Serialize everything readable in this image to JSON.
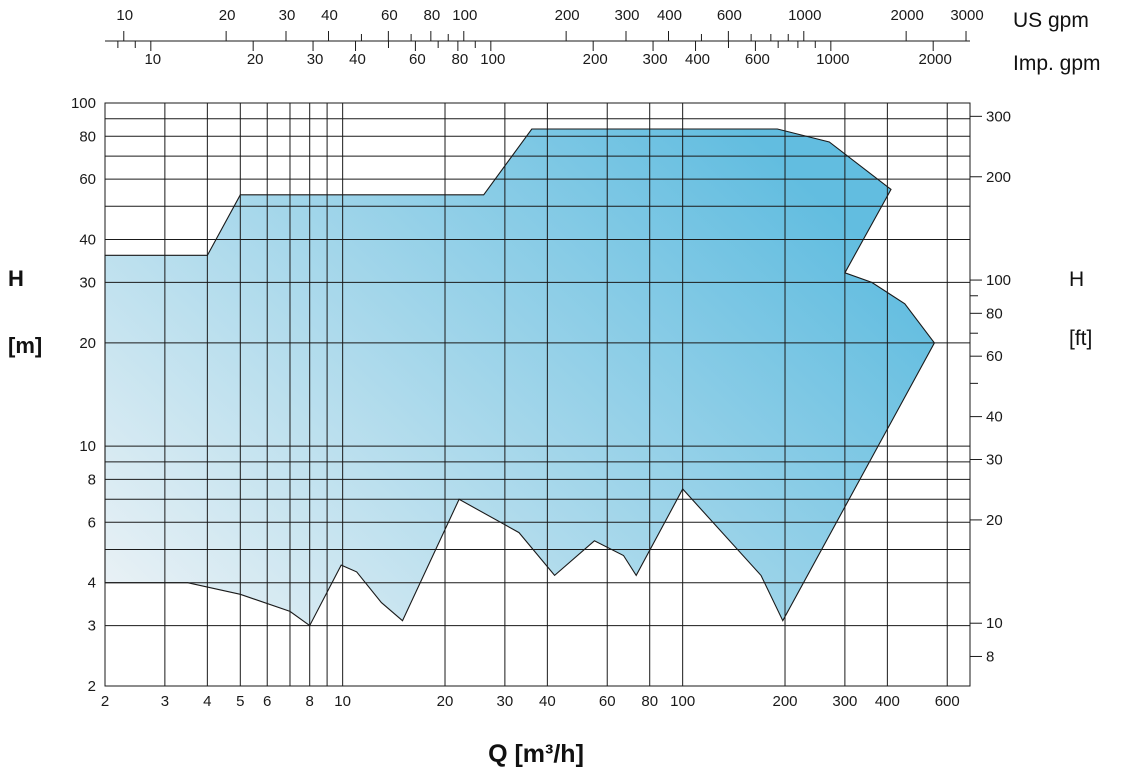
{
  "chart_data": {
    "type": "area",
    "title": "",
    "xlabel": "Q [m³/h]",
    "ylabel_left": [
      "H",
      "[m]"
    ],
    "ylabel_right": [
      "H",
      "[ft]"
    ],
    "x_scale": "log",
    "y_scale": "log",
    "xlim": [
      2,
      700
    ],
    "ylim": [
      2,
      100
    ],
    "grid": true,
    "fill_colors": {
      "low_q": "#eef3f6",
      "high_q": "#62bde0"
    },
    "x_ticks": [
      "2",
      "3",
      "4",
      "5",
      "6",
      "8",
      "10",
      "20",
      "30",
      "40",
      "60",
      "80",
      "100",
      "200",
      "300",
      "400",
      "600"
    ],
    "x_tick_values": [
      2,
      3,
      4,
      5,
      6,
      8,
      10,
      20,
      30,
      40,
      60,
      80,
      100,
      200,
      300,
      400,
      600
    ],
    "y_ticks_left": [
      "2",
      "3",
      "4",
      "6",
      "8",
      "10",
      "20",
      "30",
      "40",
      "60",
      "80",
      "100"
    ],
    "y_tick_values_left": [
      2,
      3,
      4,
      6,
      8,
      10,
      20,
      30,
      40,
      60,
      80,
      100
    ],
    "y_ticks_right": [
      "8",
      "10",
      "20",
      "30",
      "40",
      "60",
      "80",
      "100",
      "200",
      "300"
    ],
    "y_tick_values_right_ft": [
      8,
      10,
      20,
      30,
      40,
      60,
      80,
      100,
      200,
      300
    ],
    "top_axes": [
      {
        "unit": "US gpm",
        "labels": [
          "10",
          "20",
          "30",
          "40",
          "60",
          "80",
          "100",
          "200",
          "300",
          "400",
          "600",
          "1000",
          "2000",
          "3000"
        ],
        "values": [
          10,
          20,
          30,
          40,
          60,
          80,
          100,
          200,
          300,
          400,
          600,
          1000,
          2000,
          3000
        ],
        "minor_values": [
          50,
          70,
          90,
          500,
          700,
          800,
          900
        ]
      },
      {
        "unit": "Imp. gpm",
        "labels": [
          "10",
          "20",
          "30",
          "40",
          "60",
          "80",
          "100",
          "200",
          "300",
          "400",
          "600",
          "1000",
          "2000"
        ],
        "values": [
          10,
          20,
          30,
          40,
          60,
          80,
          100,
          200,
          300,
          400,
          600,
          1000,
          2000
        ],
        "minor_values": [
          8,
          9,
          50,
          70,
          90,
          500,
          700,
          800,
          900
        ]
      }
    ],
    "envelope_upper": [
      [
        2,
        36
      ],
      [
        4,
        36
      ],
      [
        5,
        54
      ],
      [
        26,
        54
      ],
      [
        36,
        84
      ],
      [
        190,
        84
      ],
      [
        270,
        77
      ],
      [
        410,
        56
      ],
      [
        300,
        32
      ],
      [
        360,
        30
      ],
      [
        450,
        26
      ],
      [
        550,
        20
      ]
    ],
    "envelope_lower": [
      [
        550,
        20
      ],
      [
        197,
        3.1
      ],
      [
        170,
        4.2
      ],
      [
        100,
        7.5
      ],
      [
        73,
        4.2
      ],
      [
        67,
        4.8
      ],
      [
        55,
        5.3
      ],
      [
        42,
        4.2
      ],
      [
        33,
        5.6
      ],
      [
        22,
        7.0
      ],
      [
        15,
        3.1
      ],
      [
        13,
        3.5
      ],
      [
        11,
        4.3
      ],
      [
        9.9,
        4.5
      ],
      [
        8,
        3.0
      ],
      [
        7,
        3.3
      ],
      [
        5,
        3.7
      ],
      [
        3.5,
        4.0
      ],
      [
        2,
        4.0
      ]
    ]
  }
}
